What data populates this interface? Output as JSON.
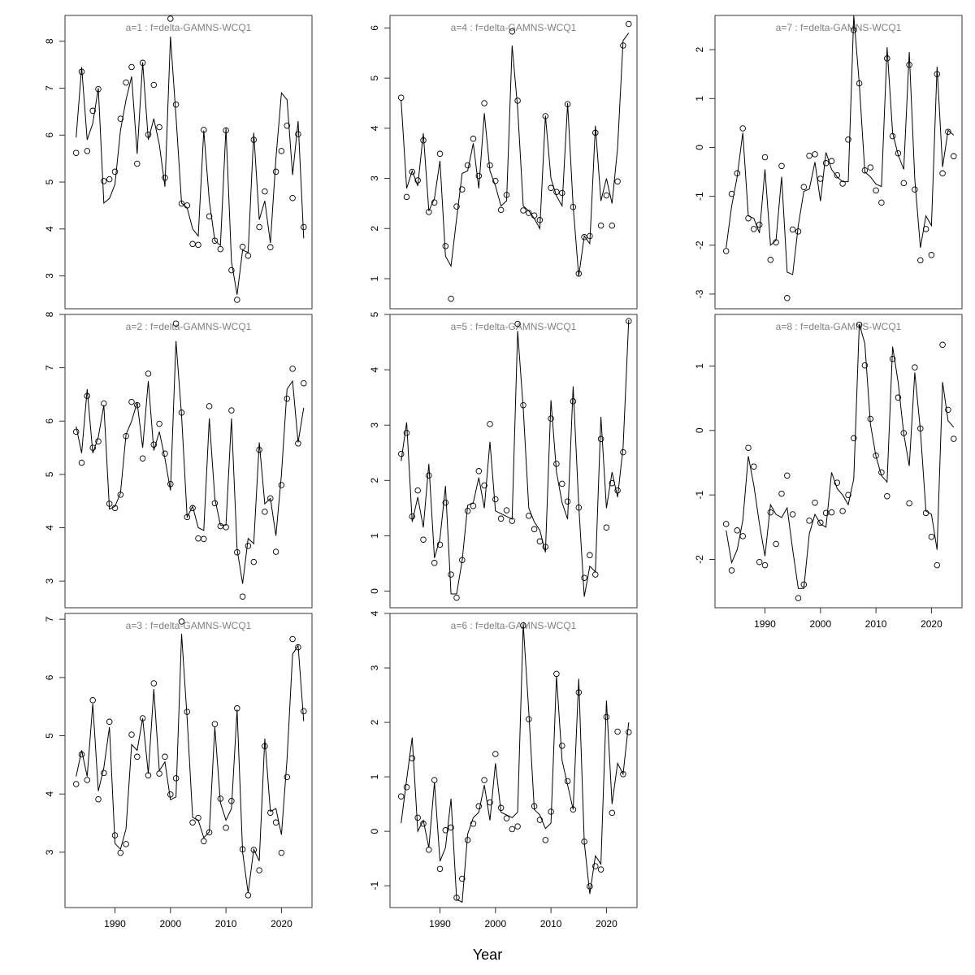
{
  "figure": {
    "xlabel": "Year"
  },
  "chart_data": [
    {
      "panel": "a=1",
      "type": "scatter+line",
      "title": "a=1  :  f=delta-GAMNS-WCQ1",
      "xlim": [
        1981,
        2025.5
      ],
      "ylim": [
        2.3,
        8.55
      ],
      "yticks": [
        3,
        4,
        5,
        6,
        7,
        8
      ],
      "xticks": [],
      "points": [
        5.62,
        7.35,
        5.66,
        6.52,
        6.98,
        5.02,
        5.06,
        5.22,
        6.35,
        7.12,
        7.45,
        5.39,
        7.54,
        6.01,
        7.07,
        6.17,
        5.09,
        8.48,
        6.65,
        4.54,
        4.5,
        3.68,
        3.66,
        6.11,
        4.27,
        3.75,
        3.57,
        6.1,
        3.12,
        2.49,
        3.62,
        3.43,
        5.9,
        4.04,
        4.8,
        3.61,
        5.22,
        5.66,
        6.2,
        4.66,
        6.02,
        4.04
      ],
      "fit": [
        5.95,
        7.45,
        5.9,
        6.25,
        7.0,
        4.55,
        4.65,
        4.95,
        6.1,
        6.75,
        7.25,
        5.6,
        7.55,
        5.9,
        6.35,
        5.8,
        4.9,
        8.1,
        6.4,
        4.55,
        4.45,
        4.0,
        3.85,
        6.1,
        4.6,
        3.75,
        3.65,
        6.15,
        3.3,
        2.6,
        3.55,
        3.5,
        6.05,
        4.2,
        4.6,
        3.7,
        5.5,
        6.9,
        6.75,
        5.15,
        6.3,
        3.8
      ]
    },
    {
      "panel": "a=2",
      "type": "scatter+line",
      "title": "a=2  :  f=delta-GAMNS-WCQ1",
      "xlim": [
        1981,
        2025.5
      ],
      "ylim": [
        2.5,
        8.0
      ],
      "yticks": [
        3,
        4,
        5,
        6,
        7,
        8
      ],
      "xticks": [],
      "points": [
        5.8,
        5.22,
        6.47,
        5.5,
        5.62,
        6.33,
        4.45,
        4.37,
        4.62,
        5.72,
        6.36,
        6.3,
        5.3,
        6.89,
        5.56,
        5.95,
        5.39,
        4.82,
        7.83,
        6.16,
        4.2,
        4.37,
        3.8,
        3.79,
        6.28,
        4.46,
        4.03,
        4.01,
        6.2,
        3.54,
        2.71,
        3.66,
        3.36,
        5.46,
        4.3,
        4.55,
        3.55,
        4.8,
        6.42,
        6.98,
        5.58,
        6.71
      ],
      "fit": [
        5.9,
        5.4,
        6.6,
        5.4,
        5.7,
        6.3,
        4.35,
        4.4,
        4.65,
        5.75,
        6.0,
        6.35,
        5.5,
        6.75,
        5.45,
        5.8,
        5.3,
        4.7,
        7.5,
        6.1,
        4.2,
        4.4,
        4.0,
        3.95,
        6.05,
        4.55,
        4.05,
        4.05,
        6.05,
        3.6,
        2.95,
        3.8,
        3.7,
        5.6,
        4.45,
        4.55,
        3.85,
        5.0,
        6.6,
        6.75,
        5.6,
        6.25
      ]
    },
    {
      "panel": "a=3",
      "type": "scatter+line",
      "title": "a=3  :  f=delta-GAMNS-WCQ1",
      "xlim": [
        1981,
        2025.5
      ],
      "ylim": [
        2.05,
        7.1
      ],
      "yticks": [
        3,
        4,
        5,
        6,
        7
      ],
      "xticks": [
        1990,
        2000,
        2010,
        2020
      ],
      "points": [
        4.17,
        4.68,
        4.24,
        5.61,
        3.91,
        4.36,
        5.24,
        3.29,
        2.99,
        3.14,
        5.02,
        4.64,
        5.3,
        4.32,
        5.9,
        4.35,
        4.64,
        3.99,
        4.27,
        6.96,
        5.41,
        3.51,
        3.59,
        3.19,
        3.34,
        5.2,
        3.92,
        3.42,
        3.88,
        5.47,
        3.05,
        2.26,
        3.04,
        2.69,
        4.82,
        3.68,
        3.51,
        2.99,
        4.29,
        6.66,
        6.52,
        5.42
      ],
      "fit": [
        4.3,
        4.75,
        4.3,
        5.55,
        4.05,
        4.45,
        5.15,
        3.15,
        3.05,
        3.4,
        4.85,
        4.75,
        5.3,
        4.35,
        5.8,
        4.4,
        4.55,
        3.9,
        3.95,
        6.75,
        5.3,
        3.6,
        3.55,
        3.25,
        3.35,
        5.15,
        3.85,
        3.55,
        3.75,
        5.45,
        3.0,
        2.3,
        3.05,
        2.85,
        4.95,
        3.7,
        3.75,
        3.3,
        4.6,
        6.4,
        6.55,
        5.25
      ]
    },
    {
      "panel": "a=4",
      "type": "scatter+line",
      "title": "a=4  :  f=delta-GAMNS-WCQ1",
      "xlim": [
        1981,
        2025.5
      ],
      "ylim": [
        0.4,
        6.25
      ],
      "yticks": [
        1,
        2,
        3,
        4,
        5,
        6
      ],
      "xticks": [],
      "points": [
        4.61,
        2.63,
        3.13,
        2.96,
        3.76,
        2.33,
        2.52,
        3.49,
        1.65,
        0.6,
        2.44,
        2.78,
        3.26,
        3.79,
        3.05,
        4.5,
        3.26,
        2.95,
        2.37,
        2.67,
        5.93,
        4.55,
        2.36,
        2.31,
        2.26,
        2.17,
        4.24,
        2.81,
        2.73,
        2.71,
        4.48,
        2.43,
        1.1,
        1.83,
        1.85,
        3.91,
        2.06,
        2.66,
        2.06,
        2.94,
        5.65,
        6.08
      ],
      "fit": [
        4.55,
        2.8,
        3.15,
        2.85,
        3.9,
        2.35,
        2.6,
        3.35,
        1.45,
        1.25,
        2.2,
        3.1,
        3.15,
        3.7,
        2.8,
        4.3,
        3.15,
        2.85,
        2.45,
        2.55,
        5.65,
        4.4,
        2.45,
        2.35,
        2.2,
        2.0,
        4.25,
        3.0,
        2.65,
        2.45,
        4.5,
        2.45,
        1.05,
        1.85,
        1.7,
        4.05,
        2.55,
        3.0,
        2.5,
        3.6,
        5.75,
        5.9
      ]
    },
    {
      "panel": "a=5",
      "type": "scatter+line",
      "title": "a=5  :  f=delta-GAMNS-WCQ1",
      "xlim": [
        1981,
        2025.5
      ],
      "ylim": [
        -0.3,
        5.0
      ],
      "yticks": [
        0,
        1,
        2,
        3,
        4,
        5
      ],
      "xticks": [],
      "points": [
        2.48,
        2.86,
        1.35,
        1.82,
        0.93,
        2.09,
        0.51,
        0.84,
        1.6,
        0.3,
        -0.12,
        0.56,
        1.45,
        1.54,
        2.17,
        1.91,
        3.02,
        1.66,
        1.31,
        1.46,
        1.27,
        4.83,
        3.36,
        1.36,
        1.12,
        0.9,
        0.8,
        3.12,
        2.3,
        1.94,
        1.62,
        3.43,
        1.51,
        0.24,
        0.65,
        0.3,
        2.75,
        1.15,
        1.95,
        1.82,
        2.51,
        4.88
      ],
      "fit": [
        2.35,
        3.05,
        1.25,
        1.7,
        1.15,
        2.3,
        0.6,
        0.95,
        1.9,
        -0.05,
        -0.05,
        0.55,
        1.55,
        1.6,
        2.05,
        1.5,
        2.7,
        1.45,
        1.4,
        1.35,
        1.3,
        4.7,
        3.3,
        1.5,
        1.25,
        1.1,
        0.7,
        3.45,
        2.15,
        1.6,
        1.3,
        3.7,
        1.55,
        -0.1,
        0.45,
        0.35,
        3.15,
        1.5,
        2.15,
        1.7,
        2.6,
        4.9
      ]
    },
    {
      "panel": "a=6",
      "type": "scatter+line",
      "title": "a=6  :  f=delta-GAMNS-WCQ1",
      "xlim": [
        1981,
        2025.5
      ],
      "ylim": [
        -1.4,
        4.0
      ],
      "yticks": [
        -1,
        0,
        1,
        2,
        3,
        4
      ],
      "xticks": [
        1990,
        2000,
        2010,
        2020
      ],
      "points": [
        0.64,
        0.81,
        1.34,
        0.25,
        0.14,
        -0.34,
        0.94,
        -0.69,
        0.02,
        0.07,
        -1.22,
        -0.87,
        -0.16,
        0.14,
        0.46,
        0.94,
        0.53,
        1.42,
        0.43,
        0.24,
        0.04,
        0.09,
        3.78,
        2.06,
        0.46,
        0.21,
        -0.16,
        0.36,
        2.89,
        1.57,
        0.92,
        0.4,
        2.55,
        -0.19,
        -1.01,
        -0.64,
        -0.7,
        2.1,
        0.34,
        1.83,
        1.05,
        1.82
      ],
      "fit": [
        0.15,
        0.95,
        1.72,
        0.0,
        0.2,
        -0.3,
        0.9,
        -0.55,
        -0.3,
        0.6,
        -1.25,
        -1.3,
        -0.05,
        0.25,
        0.35,
        0.85,
        0.2,
        1.25,
        0.35,
        0.3,
        0.25,
        0.35,
        3.8,
        2.2,
        0.4,
        0.3,
        0.05,
        0.15,
        2.85,
        1.3,
        0.85,
        0.4,
        2.8,
        -0.2,
        -1.15,
        -0.45,
        -0.6,
        2.4,
        0.5,
        1.25,
        1.05,
        2.0
      ]
    },
    {
      "panel": "a=7",
      "type": "scatter+line",
      "title": "a=7  :  f=delta-GAMNS-WCQ1",
      "xlim": [
        1981,
        2025.5
      ],
      "ylim": [
        -3.3,
        2.7
      ],
      "yticks": [
        -3,
        -2,
        -1,
        0,
        1,
        2
      ],
      "xticks": [],
      "points": [
        -2.12,
        -0.95,
        -0.53,
        0.39,
        -1.45,
        -1.67,
        -1.58,
        -0.2,
        -2.3,
        -1.94,
        -0.38,
        -3.08,
        -1.68,
        -1.72,
        -0.81,
        -0.17,
        -0.14,
        -0.64,
        -0.32,
        -0.28,
        -0.57,
        -0.74,
        0.16,
        2.4,
        1.31,
        -0.47,
        -0.41,
        -0.88,
        -1.13,
        1.82,
        0.23,
        -0.12,
        -0.73,
        1.69,
        -0.86,
        -2.31,
        -1.67,
        -2.2,
        1.5,
        -0.53,
        0.32,
        -0.18
      ],
      "fit": [
        -2.05,
        -1.2,
        -0.6,
        0.3,
        -1.4,
        -1.45,
        -1.75,
        -0.45,
        -2.0,
        -1.9,
        -0.6,
        -2.55,
        -2.6,
        -1.6,
        -0.9,
        -0.85,
        -0.3,
        -1.1,
        -0.1,
        -0.45,
        -0.6,
        -0.7,
        -0.7,
        2.7,
        1.3,
        -0.5,
        -0.6,
        -0.75,
        -0.8,
        2.05,
        0.3,
        -0.15,
        -0.45,
        1.95,
        -0.65,
        -2.05,
        -1.4,
        -1.6,
        1.65,
        -0.4,
        0.35,
        0.25
      ]
    },
    {
      "panel": "a=8",
      "type": "scatter+line",
      "title": "a=8  :  f=delta-GAMNS-WCQ1",
      "xlim": [
        1981,
        2025.5
      ],
      "ylim": [
        -2.75,
        1.8
      ],
      "yticks": [
        -2,
        -1,
        0,
        1
      ],
      "xticks": [
        1990,
        2000,
        2010,
        2020
      ],
      "points": [
        -1.45,
        -2.17,
        -1.55,
        -1.64,
        -0.27,
        -0.56,
        -2.04,
        -2.09,
        -1.27,
        -1.76,
        -0.98,
        -0.7,
        -1.3,
        -2.6,
        -2.39,
        -1.4,
        -1.12,
        -1.43,
        -1.28,
        -1.27,
        -0.81,
        -1.25,
        -1.0,
        -0.12,
        1.64,
        1.01,
        0.18,
        -0.39,
        -0.65,
        -1.02,
        1.11,
        0.51,
        -0.04,
        -1.13,
        0.98,
        0.03,
        -1.28,
        -1.65,
        -2.09,
        1.33,
        0.32,
        -0.13
      ],
      "fit": [
        -1.55,
        -2.05,
        -1.85,
        -1.4,
        -0.4,
        -0.85,
        -1.45,
        -1.95,
        -1.15,
        -1.3,
        -1.35,
        -1.2,
        -1.85,
        -2.45,
        -2.45,
        -1.6,
        -1.3,
        -1.45,
        -1.5,
        -0.65,
        -0.9,
        -1.0,
        -1.15,
        -0.75,
        1.65,
        1.35,
        0.1,
        -0.4,
        -0.7,
        -0.8,
        1.3,
        0.75,
        -0.05,
        -0.55,
        0.9,
        0.0,
        -1.25,
        -1.3,
        -1.85,
        0.75,
        0.15,
        0.05
      ]
    }
  ]
}
